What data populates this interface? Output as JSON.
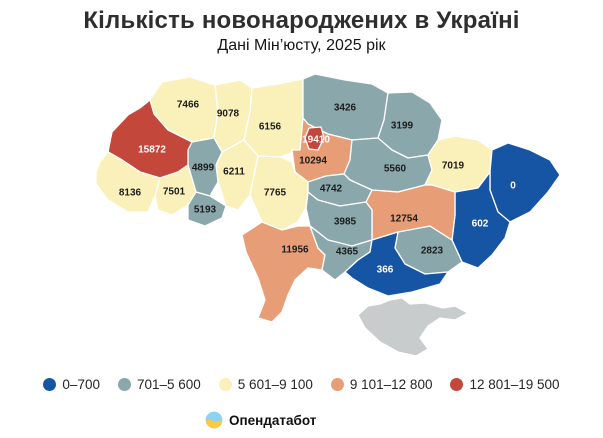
{
  "header": {
    "title": "Кількість новонароджених в Україні",
    "subtitle": "Дані Мін’юсту, 2025 рік"
  },
  "chart_data": {
    "type": "choropleth",
    "title": "Кількість новонароджених в Україні",
    "subtitle": "Дані Мін’юсту, 2025 рік",
    "legend": [
      {
        "label": "0–700",
        "color": "#1655a3"
      },
      {
        "label": "701–5 600",
        "color": "#8aa7ab"
      },
      {
        "label": "5 601–9 100",
        "color": "#faf0ba"
      },
      {
        "label": "9 101–12 800",
        "color": "#e79e77"
      },
      {
        "label": "12 801–19 500",
        "color": "#c4473b"
      }
    ],
    "no_data_color": "#c9cccd",
    "label_color_dark": "#1c1c1c",
    "label_color_light": "#ffffff",
    "regions": [
      {
        "id": "volyn",
        "value": 7466,
        "bin": 2
      },
      {
        "id": "rivne",
        "value": 9078,
        "bin": 2
      },
      {
        "id": "zhytomyr",
        "value": 6156,
        "bin": 2
      },
      {
        "id": "chernihiv",
        "value": 3426,
        "bin": 1
      },
      {
        "id": "sumy",
        "value": 3199,
        "bin": 1
      },
      {
        "id": "kyiv-oblast",
        "value": 10294,
        "bin": 3
      },
      {
        "id": "kyiv-city",
        "value": 19410,
        "bin": 4
      },
      {
        "id": "poltava",
        "value": 5560,
        "bin": 1
      },
      {
        "id": "kharkiv",
        "value": 7019,
        "bin": 2
      },
      {
        "id": "luhansk",
        "value": 0,
        "bin": 0
      },
      {
        "id": "donetsk",
        "value": 602,
        "bin": 0
      },
      {
        "id": "zaporizhzhia",
        "value": 2823,
        "bin": 1
      },
      {
        "id": "dnipropetrovsk",
        "value": 12754,
        "bin": 3
      },
      {
        "id": "cherkasy",
        "value": 4742,
        "bin": 1
      },
      {
        "id": "kirovohrad",
        "value": 3985,
        "bin": 1
      },
      {
        "id": "vinnytsia",
        "value": 7765,
        "bin": 2
      },
      {
        "id": "khmelnytskyi",
        "value": 6211,
        "bin": 2
      },
      {
        "id": "ternopil",
        "value": 4899,
        "bin": 1
      },
      {
        "id": "lviv",
        "value": 15872,
        "bin": 4
      },
      {
        "id": "zakarpattia",
        "value": 8136,
        "bin": 2
      },
      {
        "id": "ivano-frankivsk",
        "value": 7501,
        "bin": 2
      },
      {
        "id": "chernivtsi",
        "value": 5193,
        "bin": 1
      },
      {
        "id": "odesa",
        "value": 11956,
        "bin": 3
      },
      {
        "id": "mykolaiv",
        "value": 4365,
        "bin": 1
      },
      {
        "id": "kherson",
        "value": 366,
        "bin": 0
      },
      {
        "id": "crimea",
        "value": null,
        "bin": null
      }
    ]
  },
  "footer": {
    "brand": "Опендатабот"
  }
}
